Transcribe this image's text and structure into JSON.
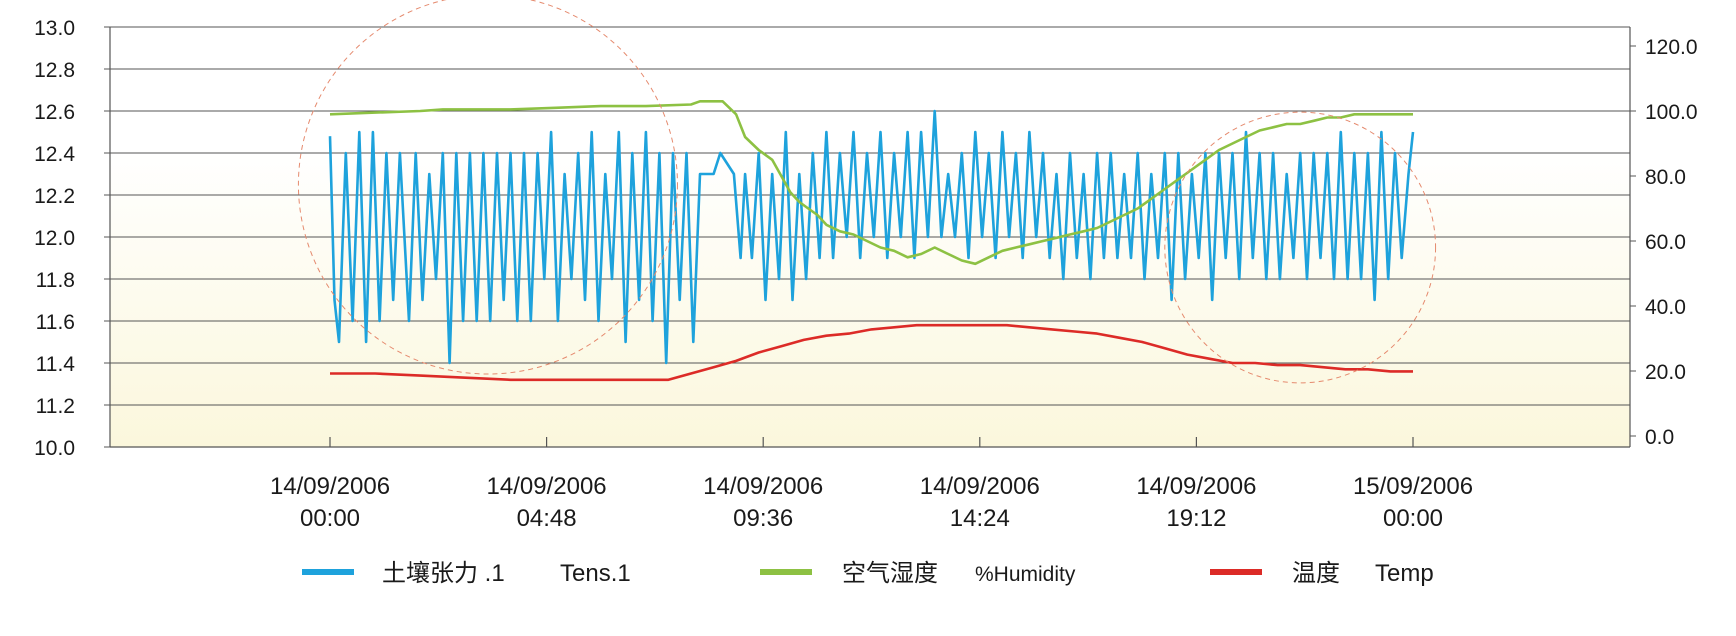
{
  "chart_data": {
    "type": "line",
    "x_range": [
      "14/09/2006 00:00",
      "15/09/2006 00:00"
    ],
    "x_ticks": [
      {
        "date": "14/09/2006",
        "time": "00:00",
        "hours": 0
      },
      {
        "date": "14/09/2006",
        "time": "04:48",
        "hours": 4.8
      },
      {
        "date": "14/09/2006",
        "time": "09:36",
        "hours": 9.6
      },
      {
        "date": "14/09/2006",
        "time": "14:24",
        "hours": 14.4
      },
      {
        "date": "14/09/2006",
        "time": "19:12",
        "hours": 19.2
      },
      {
        "date": "15/09/2006",
        "time": "00:00",
        "hours": 24
      }
    ],
    "y_left": {
      "range": [
        10.0,
        13.0
      ],
      "ticks": [
        "10.0",
        "11.2",
        "11.4",
        "11.6",
        "11.8",
        "12.0",
        "12.2",
        "12.4",
        "12.6",
        "12.8",
        "13.0"
      ],
      "tick_values": [
        10.0,
        11.2,
        11.4,
        11.6,
        11.8,
        12.0,
        12.2,
        12.4,
        12.6,
        12.8,
        13.0
      ]
    },
    "y_right": {
      "range": [
        0,
        120
      ],
      "ticks": [
        "0.0",
        "20.0",
        "40.0",
        "60.0",
        "80.0",
        "100.0",
        "120.0"
      ],
      "tick_values": [
        0,
        20,
        40,
        60,
        80,
        100,
        120
      ]
    },
    "grid": true,
    "legend_position": "bottom",
    "series": [
      {
        "name_zh": "土壤张力 .1",
        "name_en": "Tens.1",
        "color": "#1ea2dc",
        "axis": "left",
        "points": [
          [
            0,
            12.48
          ],
          [
            0.1,
            11.7
          ],
          [
            0.2,
            11.5
          ],
          [
            0.35,
            12.4
          ],
          [
            0.5,
            11.6
          ],
          [
            0.65,
            12.5
          ],
          [
            0.8,
            11.5
          ],
          [
            0.95,
            12.5
          ],
          [
            1.1,
            11.6
          ],
          [
            1.25,
            12.4
          ],
          [
            1.4,
            11.7
          ],
          [
            1.55,
            12.4
          ],
          [
            1.75,
            11.6
          ],
          [
            1.9,
            12.4
          ],
          [
            2.05,
            11.7
          ],
          [
            2.2,
            12.3
          ],
          [
            2.35,
            11.8
          ],
          [
            2.5,
            12.4
          ],
          [
            2.65,
            11.4
          ],
          [
            2.8,
            12.4
          ],
          [
            2.95,
            11.6
          ],
          [
            3.1,
            12.4
          ],
          [
            3.25,
            11.6
          ],
          [
            3.4,
            12.4
          ],
          [
            3.55,
            11.6
          ],
          [
            3.7,
            12.4
          ],
          [
            3.85,
            11.7
          ],
          [
            4.0,
            12.4
          ],
          [
            4.15,
            11.6
          ],
          [
            4.3,
            12.4
          ],
          [
            4.45,
            11.6
          ],
          [
            4.6,
            12.4
          ],
          [
            4.75,
            11.8
          ],
          [
            4.9,
            12.5
          ],
          [
            5.05,
            11.6
          ],
          [
            5.2,
            12.3
          ],
          [
            5.35,
            11.8
          ],
          [
            5.5,
            12.4
          ],
          [
            5.65,
            11.7
          ],
          [
            5.8,
            12.5
          ],
          [
            5.95,
            11.6
          ],
          [
            6.1,
            12.3
          ],
          [
            6.25,
            11.8
          ],
          [
            6.4,
            12.5
          ],
          [
            6.55,
            11.5
          ],
          [
            6.7,
            12.4
          ],
          [
            6.85,
            11.7
          ],
          [
            7.0,
            12.5
          ],
          [
            7.15,
            11.6
          ],
          [
            7.3,
            12.4
          ],
          [
            7.45,
            11.4
          ],
          [
            7.6,
            12.4
          ],
          [
            7.75,
            11.7
          ],
          [
            7.9,
            12.4
          ],
          [
            8.05,
            11.5
          ],
          [
            8.2,
            12.3
          ],
          [
            8.35,
            12.3
          ],
          [
            8.5,
            12.3
          ],
          [
            8.65,
            12.4
          ],
          [
            8.8,
            12.35
          ],
          [
            8.95,
            12.3
          ],
          [
            9.1,
            11.9
          ],
          [
            9.2,
            12.3
          ],
          [
            9.35,
            11.9
          ],
          [
            9.5,
            12.4
          ],
          [
            9.65,
            11.7
          ],
          [
            9.8,
            12.3
          ],
          [
            9.95,
            11.8
          ],
          [
            10.1,
            12.5
          ],
          [
            10.25,
            11.7
          ],
          [
            10.4,
            12.3
          ],
          [
            10.55,
            11.8
          ],
          [
            10.7,
            12.4
          ],
          [
            10.85,
            11.9
          ],
          [
            11.0,
            12.5
          ],
          [
            11.15,
            11.9
          ],
          [
            11.3,
            12.4
          ],
          [
            11.45,
            12.0
          ],
          [
            11.6,
            12.5
          ],
          [
            11.75,
            11.9
          ],
          [
            11.9,
            12.4
          ],
          [
            12.05,
            12.0
          ],
          [
            12.2,
            12.5
          ],
          [
            12.35,
            11.9
          ],
          [
            12.5,
            12.4
          ],
          [
            12.65,
            12.0
          ],
          [
            12.8,
            12.5
          ],
          [
            12.95,
            11.9
          ],
          [
            13.1,
            12.5
          ],
          [
            13.25,
            12.0
          ],
          [
            13.4,
            12.6
          ],
          [
            13.55,
            12.0
          ],
          [
            13.7,
            12.3
          ],
          [
            13.85,
            12.0
          ],
          [
            14.0,
            12.4
          ],
          [
            14.15,
            11.9
          ],
          [
            14.3,
            12.5
          ],
          [
            14.45,
            12.0
          ],
          [
            14.6,
            12.4
          ],
          [
            14.75,
            11.9
          ],
          [
            14.9,
            12.5
          ],
          [
            15.05,
            12.0
          ],
          [
            15.2,
            12.4
          ],
          [
            15.35,
            11.9
          ],
          [
            15.5,
            12.5
          ],
          [
            15.65,
            12.0
          ],
          [
            15.8,
            12.4
          ],
          [
            15.95,
            11.9
          ],
          [
            16.1,
            12.3
          ],
          [
            16.25,
            11.8
          ],
          [
            16.4,
            12.4
          ],
          [
            16.55,
            11.9
          ],
          [
            16.7,
            12.3
          ],
          [
            16.85,
            11.8
          ],
          [
            17.0,
            12.4
          ],
          [
            17.15,
            11.9
          ],
          [
            17.3,
            12.4
          ],
          [
            17.45,
            11.9
          ],
          [
            17.6,
            12.3
          ],
          [
            17.75,
            11.9
          ],
          [
            17.9,
            12.4
          ],
          [
            18.05,
            11.8
          ],
          [
            18.2,
            12.3
          ],
          [
            18.35,
            11.9
          ],
          [
            18.5,
            12.4
          ],
          [
            18.65,
            11.7
          ],
          [
            18.8,
            12.4
          ],
          [
            18.95,
            11.8
          ],
          [
            19.1,
            12.3
          ],
          [
            19.25,
            11.9
          ],
          [
            19.4,
            12.4
          ],
          [
            19.55,
            11.7
          ],
          [
            19.7,
            12.4
          ],
          [
            19.85,
            11.9
          ],
          [
            20.0,
            12.4
          ],
          [
            20.15,
            11.8
          ],
          [
            20.3,
            12.5
          ],
          [
            20.45,
            11.9
          ],
          [
            20.6,
            12.4
          ],
          [
            20.75,
            11.8
          ],
          [
            20.9,
            12.4
          ],
          [
            21.05,
            11.8
          ],
          [
            21.2,
            12.3
          ],
          [
            21.35,
            11.9
          ],
          [
            21.5,
            12.4
          ],
          [
            21.65,
            11.8
          ],
          [
            21.8,
            12.4
          ],
          [
            21.95,
            11.9
          ],
          [
            22.1,
            12.4
          ],
          [
            22.25,
            11.8
          ],
          [
            22.4,
            12.5
          ],
          [
            22.55,
            11.8
          ],
          [
            22.7,
            12.4
          ],
          [
            22.85,
            11.8
          ],
          [
            23.0,
            12.4
          ],
          [
            23.15,
            11.7
          ],
          [
            23.3,
            12.5
          ],
          [
            23.45,
            11.8
          ],
          [
            23.6,
            12.4
          ],
          [
            23.75,
            11.9
          ],
          [
            23.9,
            12.3
          ],
          [
            24.0,
            12.5
          ]
        ]
      },
      {
        "name_zh": "空气湿度",
        "name_en": "%Humidity",
        "color": "#8dc143",
        "axis": "right",
        "points": [
          [
            0,
            99
          ],
          [
            1,
            99.5
          ],
          [
            2,
            100
          ],
          [
            2.5,
            100.5
          ],
          [
            3,
            100.5
          ],
          [
            4,
            100.5
          ],
          [
            5,
            101
          ],
          [
            6,
            101.5
          ],
          [
            7,
            101.5
          ],
          [
            8,
            102
          ],
          [
            8.2,
            103
          ],
          [
            8.7,
            103
          ],
          [
            9.0,
            99
          ],
          [
            9.2,
            92
          ],
          [
            9.5,
            88
          ],
          [
            9.8,
            85
          ],
          [
            10.0,
            80
          ],
          [
            10.2,
            75
          ],
          [
            10.4,
            72
          ],
          [
            10.6,
            70
          ],
          [
            10.8,
            68
          ],
          [
            11.0,
            65
          ],
          [
            11.3,
            63
          ],
          [
            11.6,
            62
          ],
          [
            11.9,
            60
          ],
          [
            12.2,
            58
          ],
          [
            12.5,
            57
          ],
          [
            12.8,
            55
          ],
          [
            13.1,
            56
          ],
          [
            13.4,
            58
          ],
          [
            13.7,
            56
          ],
          [
            14.0,
            54
          ],
          [
            14.3,
            53
          ],
          [
            14.6,
            55
          ],
          [
            14.9,
            57
          ],
          [
            15.2,
            58
          ],
          [
            15.5,
            59
          ],
          [
            15.8,
            60
          ],
          [
            16.1,
            61
          ],
          [
            16.4,
            62
          ],
          [
            16.7,
            63
          ],
          [
            17.0,
            64
          ],
          [
            17.3,
            66
          ],
          [
            17.6,
            68
          ],
          [
            17.9,
            70
          ],
          [
            18.2,
            73
          ],
          [
            18.5,
            76
          ],
          [
            18.8,
            79
          ],
          [
            19.1,
            82
          ],
          [
            19.4,
            85
          ],
          [
            19.7,
            88
          ],
          [
            20.0,
            90
          ],
          [
            20.3,
            92
          ],
          [
            20.6,
            94
          ],
          [
            20.9,
            95
          ],
          [
            21.2,
            96
          ],
          [
            21.5,
            96
          ],
          [
            21.8,
            97
          ],
          [
            22.1,
            98
          ],
          [
            22.4,
            98
          ],
          [
            22.7,
            99
          ],
          [
            23.0,
            99
          ],
          [
            23.3,
            99
          ],
          [
            23.6,
            99
          ],
          [
            24.0,
            99
          ]
        ]
      },
      {
        "name_zh": "温度",
        "name_en": "Temp",
        "color": "#dc2b27",
        "axis": "left",
        "points": [
          [
            0,
            11.35
          ],
          [
            1,
            11.35
          ],
          [
            2,
            11.34
          ],
          [
            3,
            11.33
          ],
          [
            4,
            11.32
          ],
          [
            5,
            11.32
          ],
          [
            6,
            11.32
          ],
          [
            7,
            11.32
          ],
          [
            7.5,
            11.32
          ],
          [
            8,
            11.35
          ],
          [
            8.5,
            11.38
          ],
          [
            9,
            11.41
          ],
          [
            9.5,
            11.45
          ],
          [
            10,
            11.48
          ],
          [
            10.5,
            11.51
          ],
          [
            11,
            11.53
          ],
          [
            11.5,
            11.54
          ],
          [
            12,
            11.56
          ],
          [
            12.5,
            11.57
          ],
          [
            13,
            11.58
          ],
          [
            13.5,
            11.58
          ],
          [
            14,
            11.58
          ],
          [
            14.5,
            11.58
          ],
          [
            15,
            11.58
          ],
          [
            15.5,
            11.57
          ],
          [
            16,
            11.56
          ],
          [
            16.5,
            11.55
          ],
          [
            17,
            11.54
          ],
          [
            17.5,
            11.52
          ],
          [
            18,
            11.5
          ],
          [
            18.5,
            11.47
          ],
          [
            19,
            11.44
          ],
          [
            19.5,
            11.42
          ],
          [
            20,
            11.4
          ],
          [
            20.5,
            11.4
          ],
          [
            21,
            11.39
          ],
          [
            21.5,
            11.39
          ],
          [
            22,
            11.38
          ],
          [
            22.5,
            11.37
          ],
          [
            23,
            11.37
          ],
          [
            23.5,
            11.36
          ],
          [
            24,
            11.36
          ]
        ]
      }
    ],
    "annotations": [
      {
        "shape": "dashed-circle",
        "color": "#e58a6e",
        "center_hours": 3.5,
        "center_value": 12.25,
        "radius_hours": 4.2
      },
      {
        "shape": "dashed-circle",
        "color": "#e58a6e",
        "center_hours": 21.5,
        "center_value": 11.95,
        "radius_hours": 3.0
      }
    ]
  }
}
